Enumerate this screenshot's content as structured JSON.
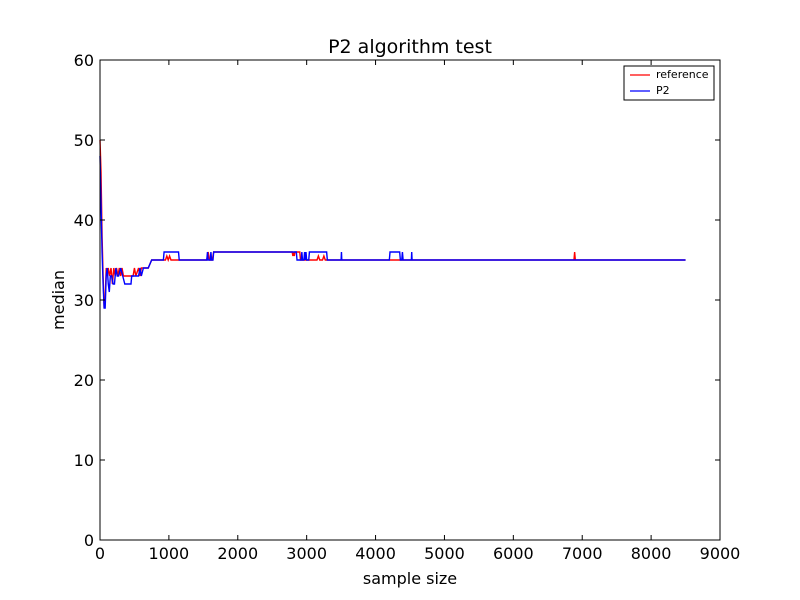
{
  "chart_data": {
    "type": "line",
    "title": "P2 algorithm test",
    "xlabel": "sample size",
    "ylabel": "median",
    "xlim": [
      0,
      9000
    ],
    "ylim": [
      0,
      60
    ],
    "xticks": [
      0,
      1000,
      2000,
      3000,
      4000,
      5000,
      6000,
      7000,
      8000,
      9000
    ],
    "yticks": [
      0,
      10,
      20,
      30,
      40,
      50,
      60
    ],
    "grid": false,
    "legend": "top-right",
    "series": [
      {
        "name": "reference",
        "color": "#ff0000",
        "points": [
          [
            0,
            50
          ],
          [
            15,
            46
          ],
          [
            30,
            38
          ],
          [
            45,
            33
          ],
          [
            60,
            29
          ],
          [
            75,
            30
          ],
          [
            90,
            34
          ],
          [
            105,
            33
          ],
          [
            120,
            34
          ],
          [
            140,
            33
          ],
          [
            160,
            34
          ],
          [
            180,
            32
          ],
          [
            200,
            34
          ],
          [
            220,
            33
          ],
          [
            240,
            34
          ],
          [
            260,
            33
          ],
          [
            280,
            34
          ],
          [
            300,
            33
          ],
          [
            320,
            34
          ],
          [
            340,
            33
          ],
          [
            400,
            33
          ],
          [
            480,
            33
          ],
          [
            500,
            34
          ],
          [
            520,
            33
          ],
          [
            560,
            34
          ],
          [
            580,
            33
          ],
          [
            600,
            34
          ],
          [
            620,
            34
          ],
          [
            640,
            34
          ],
          [
            700,
            34
          ],
          [
            750,
            35
          ],
          [
            950,
            35
          ],
          [
            970,
            35.5
          ],
          [
            990,
            35
          ],
          [
            1010,
            35.5
          ],
          [
            1030,
            35
          ],
          [
            1550,
            35
          ],
          [
            1570,
            36
          ],
          [
            1590,
            35
          ],
          [
            1630,
            35
          ],
          [
            1650,
            36
          ],
          [
            1670,
            36
          ],
          [
            2790,
            36
          ],
          [
            2800,
            35.5
          ],
          [
            2810,
            36
          ],
          [
            2820,
            35.5
          ],
          [
            2830,
            36
          ],
          [
            2900,
            36
          ],
          [
            2910,
            35
          ],
          [
            2950,
            35
          ],
          [
            3000,
            35
          ],
          [
            3050,
            35
          ],
          [
            3150,
            35
          ],
          [
            3170,
            35.5
          ],
          [
            3190,
            35
          ],
          [
            3230,
            35
          ],
          [
            3250,
            35.5
          ],
          [
            3270,
            35
          ],
          [
            3280,
            35
          ],
          [
            3500,
            35
          ],
          [
            4200,
            35
          ],
          [
            4500,
            35
          ],
          [
            6880,
            35
          ],
          [
            6890,
            36
          ],
          [
            6900,
            35
          ],
          [
            8500,
            35
          ]
        ]
      },
      {
        "name": "P2",
        "color": "#0000ff",
        "points": [
          [
            0,
            48
          ],
          [
            15,
            42
          ],
          [
            30,
            36
          ],
          [
            45,
            32
          ],
          [
            60,
            29
          ],
          [
            75,
            29
          ],
          [
            90,
            33
          ],
          [
            105,
            34
          ],
          [
            120,
            32
          ],
          [
            135,
            31
          ],
          [
            150,
            33
          ],
          [
            170,
            33
          ],
          [
            190,
            32
          ],
          [
            210,
            32
          ],
          [
            230,
            34
          ],
          [
            250,
            33
          ],
          [
            270,
            33
          ],
          [
            300,
            34
          ],
          [
            330,
            33
          ],
          [
            360,
            32
          ],
          [
            400,
            32
          ],
          [
            450,
            32
          ],
          [
            460,
            33
          ],
          [
            560,
            33
          ],
          [
            580,
            34
          ],
          [
            600,
            33
          ],
          [
            630,
            34
          ],
          [
            700,
            34
          ],
          [
            750,
            35
          ],
          [
            920,
            35
          ],
          [
            930,
            36
          ],
          [
            1140,
            36
          ],
          [
            1150,
            35
          ],
          [
            1550,
            35
          ],
          [
            1560,
            36
          ],
          [
            1570,
            35
          ],
          [
            1600,
            35
          ],
          [
            1610,
            36
          ],
          [
            1620,
            35
          ],
          [
            1640,
            35
          ],
          [
            1650,
            36
          ],
          [
            2850,
            36
          ],
          [
            2860,
            35
          ],
          [
            2920,
            35
          ],
          [
            2930,
            36
          ],
          [
            2940,
            35
          ],
          [
            2960,
            35
          ],
          [
            2970,
            36
          ],
          [
            2980,
            35
          ],
          [
            2990,
            36
          ],
          [
            3000,
            35
          ],
          [
            3030,
            35
          ],
          [
            3040,
            36
          ],
          [
            3290,
            36
          ],
          [
            3300,
            35
          ],
          [
            3500,
            35
          ],
          [
            3505,
            36
          ],
          [
            3510,
            35
          ],
          [
            4200,
            35
          ],
          [
            4210,
            36
          ],
          [
            4350,
            36
          ],
          [
            4360,
            35
          ],
          [
            4380,
            35
          ],
          [
            4390,
            36
          ],
          [
            4400,
            35
          ],
          [
            4520,
            35
          ],
          [
            4525,
            36
          ],
          [
            4530,
            35
          ],
          [
            8500,
            35
          ]
        ]
      }
    ]
  }
}
